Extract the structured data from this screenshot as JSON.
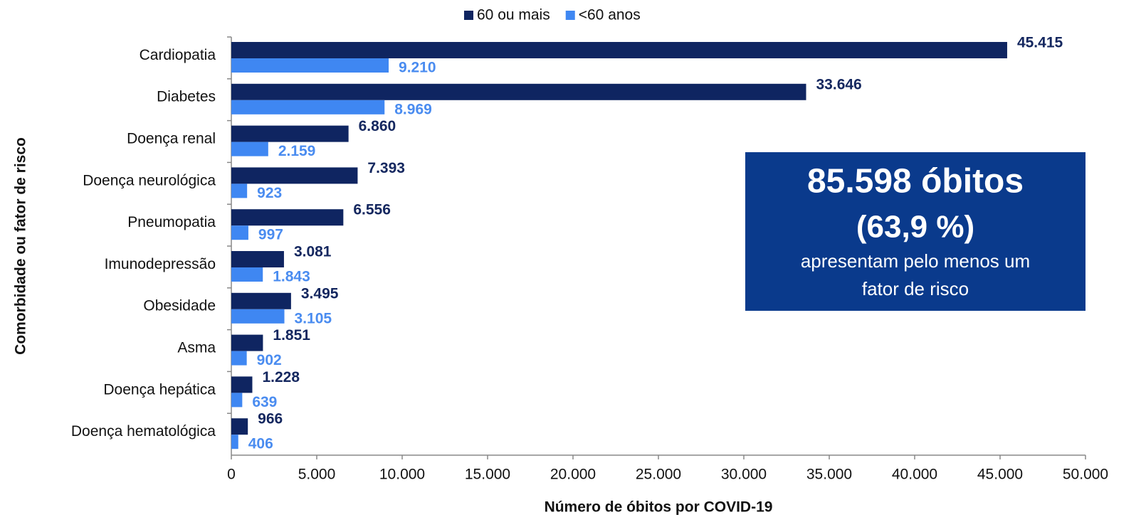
{
  "chart_data": {
    "type": "bar",
    "orientation": "horizontal",
    "x_label": "Número de óbitos por COVID-19",
    "y_label": "Comorbidade ou fator de risco",
    "categories": [
      "Cardiopatia",
      "Diabetes",
      "Doença renal",
      "Doença neurológica",
      "Pneumopatia",
      "Imunodepressão",
      "Obesidade",
      "Asma",
      "Doença hepática",
      "Doença hematológica"
    ],
    "series": [
      {
        "name": "60 ou mais",
        "color": "#0f2561",
        "values": [
          45415,
          33646,
          6860,
          7393,
          6556,
          3081,
          3495,
          1851,
          1228,
          966
        ],
        "value_labels": [
          "45.415",
          "33.646",
          "6.860",
          "7.393",
          "6.556",
          "3.081",
          "3.495",
          "1.851",
          "1.228",
          "966"
        ]
      },
      {
        "name": "<60 anos",
        "color": "#3f87f2",
        "values": [
          9210,
          8969,
          2159,
          923,
          997,
          1843,
          3105,
          902,
          639,
          406
        ],
        "value_labels": [
          "9.210",
          "8.969",
          "2.159",
          "923",
          "997",
          "1.843",
          "3.105",
          "902",
          "639",
          "406"
        ]
      }
    ],
    "xlim": [
      0,
      50000
    ],
    "xticks": [
      0,
      {
        "value": 5000,
        "label": "5.000"
      },
      {
        "value": 10000,
        "label": "10.000"
      },
      {
        "value": 15000,
        "label": "15.000"
      },
      {
        "value": 20000,
        "label": "20.000"
      },
      {
        "value": 25000,
        "label": "25.000"
      },
      {
        "value": 30000,
        "label": "30.000"
      },
      {
        "value": 35000,
        "label": "35.000"
      },
      {
        "value": 40000,
        "label": "40.000"
      },
      {
        "value": 45000,
        "label": "45.000"
      },
      {
        "value": 50000,
        "label": "50.000"
      }
    ],
    "grid": false,
    "legend": "top",
    "annotation": {
      "color": "#0a3a8c",
      "lines": [
        "85.598 óbitos",
        "(63,9 %)",
        "apresentam pelo menos um",
        "fator de risco"
      ]
    }
  }
}
